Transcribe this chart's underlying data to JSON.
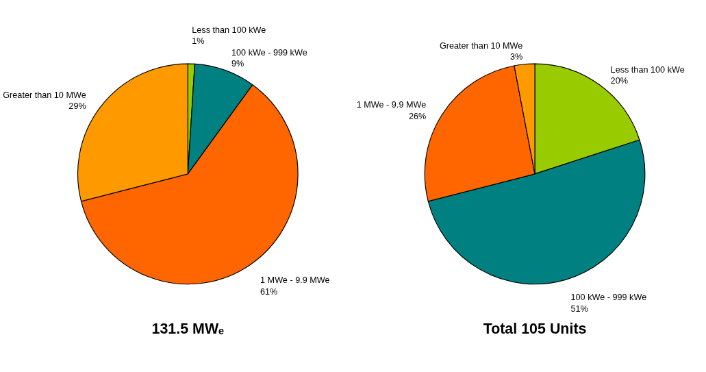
{
  "chart_data": [
    {
      "type": "pie",
      "title": "131.5 MWₑ",
      "categories": [
        "Less than 100 kWe",
        "100 kWe - 999 kWe",
        "1 MWe - 9.9 MWe",
        "Greater than 10 MWe"
      ],
      "values": [
        1,
        9,
        61,
        29
      ],
      "colors": [
        "#99cc00",
        "#008080",
        "#ff6600",
        "#ff9900"
      ],
      "value_labels": [
        "1%",
        "9%",
        "61%",
        "29%"
      ]
    },
    {
      "type": "pie",
      "title": "Total 105 Units",
      "categories": [
        "Less than 100 kWe",
        "100 kWe - 999 kWe",
        "1 MWe - 9.9 MWe",
        "Greater than 10 MWe"
      ],
      "values": [
        20,
        51,
        26,
        3
      ],
      "colors": [
        "#99cc00",
        "#008080",
        "#ff6600",
        "#ff9900"
      ],
      "value_labels": [
        "20%",
        "51%",
        "26%",
        "3%"
      ]
    }
  ]
}
